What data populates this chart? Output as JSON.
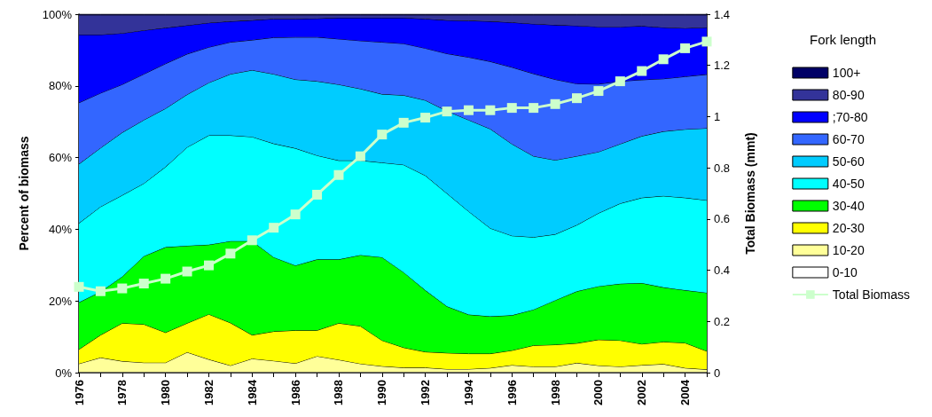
{
  "chart_data": {
    "type": "area",
    "stacked": true,
    "ylabel": "Percent of biomass",
    "y2label": "Total Biomass (mmt)",
    "legend_title": "Fork length",
    "legend": "right",
    "categories": [
      "1976",
      null,
      "1978",
      null,
      "1980",
      null,
      "1982",
      null,
      "1984",
      null,
      "1986",
      null,
      "1988",
      null,
      "1990",
      null,
      "1992",
      null,
      "1994",
      null,
      "1996",
      null,
      "1998",
      null,
      "2000",
      null,
      "2002",
      null,
      "2004",
      null
    ],
    "ylim": [
      0,
      100
    ],
    "yticks": [
      {
        "value": 0,
        "label": "0%"
      },
      {
        "value": 20,
        "label": "20%"
      },
      {
        "value": 40,
        "label": "40%"
      },
      {
        "value": 60,
        "label": "60%"
      },
      {
        "value": 80,
        "label": "80%"
      },
      {
        "value": 100,
        "label": "100%"
      }
    ],
    "y2lim": [
      0,
      1.4
    ],
    "y2ticks": [
      0,
      0.2,
      0.4,
      0.6,
      0.8,
      1,
      1.2,
      1.4
    ],
    "series": [
      {
        "name": "0-10",
        "color": "#ffffff",
        "values": [
          0.2,
          0.2,
          0.2,
          0.2,
          0.2,
          0.2,
          0.2,
          0.2,
          0.2,
          0.2,
          0.2,
          0.2,
          0.2,
          0.2,
          0.2,
          0.2,
          0.2,
          0.2,
          0.2,
          0.2,
          0.2,
          0.2,
          0.2,
          0.2,
          0.2,
          0.2,
          0.2,
          0.2,
          0.2,
          0.2
        ]
      },
      {
        "name": "10-20",
        "color": "#ffff99",
        "values": [
          2.3,
          4.0,
          3.0,
          2.6,
          2.6,
          5.5,
          3.5,
          1.8,
          3.7,
          3.1,
          2.4,
          4.4,
          3.4,
          2.3,
          1.6,
          1.2,
          1.2,
          0.8,
          0.8,
          1.1,
          1.9,
          1.5,
          1.5,
          2.5,
          1.8,
          1.5,
          1.9,
          2.2,
          1.1,
          0.7
        ]
      },
      {
        "name": "20-30",
        "color": "#ffff00",
        "values": [
          4.0,
          6.3,
          10.6,
          10.7,
          8.4,
          8.1,
          12.6,
          11.9,
          6.6,
          8.2,
          9.2,
          7.2,
          10.2,
          10.5,
          7.2,
          5.6,
          4.4,
          4.5,
          4.3,
          4.0,
          4.1,
          5.9,
          6.1,
          5.5,
          7.2,
          7.3,
          5.9,
          6.2,
          7.0,
          5.1
        ]
      },
      {
        "name": "30-40",
        "color": "#00ff00",
        "values": [
          13.1,
          12.1,
          13.0,
          19.0,
          23.8,
          21.6,
          19.4,
          22.8,
          26.2,
          20.7,
          18.1,
          19.8,
          17.8,
          19.8,
          23.2,
          21.0,
          17.2,
          13.0,
          10.9,
          10.4,
          9.8,
          10.0,
          12.4,
          14.5,
          14.9,
          15.8,
          17.0,
          15.2,
          14.7,
          16.3
        ]
      },
      {
        "name": "40-50",
        "color": "#00ffff",
        "values": [
          22.1,
          23.7,
          22.7,
          20.3,
          22.4,
          27.5,
          30.5,
          29.5,
          29.1,
          31.7,
          32.7,
          29.0,
          27.6,
          26.4,
          26.4,
          30.0,
          32.0,
          31.5,
          28.8,
          24.6,
          22.2,
          20.2,
          18.4,
          18.5,
          20.4,
          22.4,
          23.8,
          25.5,
          25.8,
          25.8
        ]
      },
      {
        "name": "50-60",
        "color": "#00ccff",
        "values": [
          16.5,
          16.4,
          17.5,
          17.7,
          16.3,
          14.7,
          14.7,
          17.1,
          18.6,
          19.4,
          19.2,
          20.7,
          21.2,
          20.0,
          19.1,
          19.4,
          21.0,
          23.0,
          25.5,
          27.7,
          25.6,
          22.6,
          20.7,
          19.2,
          17.1,
          16.6,
          17.2,
          18.0,
          19.1,
          20.1
        ]
      },
      {
        "name": "60-70",
        "color": "#3366ff",
        "values": [
          17.1,
          15.3,
          13.4,
          12.8,
          12.5,
          11.3,
          9.9,
          8.9,
          8.4,
          10.2,
          11.8,
          12.3,
          12.7,
          13.4,
          14.5,
          14.4,
          14.5,
          16.0,
          17.5,
          18.8,
          21.4,
          23.0,
          22.5,
          20.2,
          18.9,
          17.5,
          15.7,
          14.7,
          14.7,
          15.0
        ]
      },
      {
        "name": ";70-80",
        "color": "#0000ff",
        "values": [
          19.0,
          16.3,
          14.3,
          12.2,
          10.0,
          8.0,
          6.8,
          5.8,
          5.5,
          5.2,
          5.1,
          5.2,
          5.9,
          6.4,
          6.8,
          7.2,
          8.2,
          9.3,
          10.2,
          11.2,
          12.5,
          13.9,
          15.2,
          16.2,
          16.0,
          15.2,
          15.0,
          14.3,
          13.5,
          13.1
        ]
      },
      {
        "name": "80-90",
        "color": "#333399",
        "values": [
          5.5,
          5.5,
          5.1,
          4.3,
          3.6,
          2.9,
          2.2,
          1.8,
          1.5,
          1.1,
          1.1,
          1.0,
          0.8,
          0.8,
          0.8,
          0.8,
          1.1,
          1.5,
          1.6,
          1.8,
          2.1,
          2.5,
          2.8,
          3.0,
          3.3,
          3.3,
          3.1,
          3.5,
          3.7,
          3.5
        ]
      },
      {
        "name": "100+",
        "color": "#000066",
        "values": [
          0.2,
          0.2,
          0.2,
          0.2,
          0.2,
          0.2,
          0.2,
          0.2,
          0.2,
          0.2,
          0.2,
          0.2,
          0.2,
          0.2,
          0.2,
          0.2,
          0.2,
          0.2,
          0.2,
          0.2,
          0.2,
          0.2,
          0.2,
          0.2,
          0.2,
          0.2,
          0.2,
          0.2,
          0.2,
          0.2
        ]
      },
      {
        "name": "Total Biomass",
        "type": "line",
        "axis": "y2",
        "marker": "square",
        "color": "#ccffcc",
        "values": [
          0.335,
          0.318,
          0.329,
          0.348,
          0.367,
          0.395,
          0.419,
          0.465,
          0.517,
          0.566,
          0.618,
          0.695,
          0.772,
          0.845,
          0.93,
          0.976,
          0.996,
          1.02,
          1.025,
          1.025,
          1.034,
          1.034,
          1.049,
          1.072,
          1.1,
          1.138,
          1.178,
          1.224,
          1.267,
          1.293
        ]
      }
    ]
  }
}
